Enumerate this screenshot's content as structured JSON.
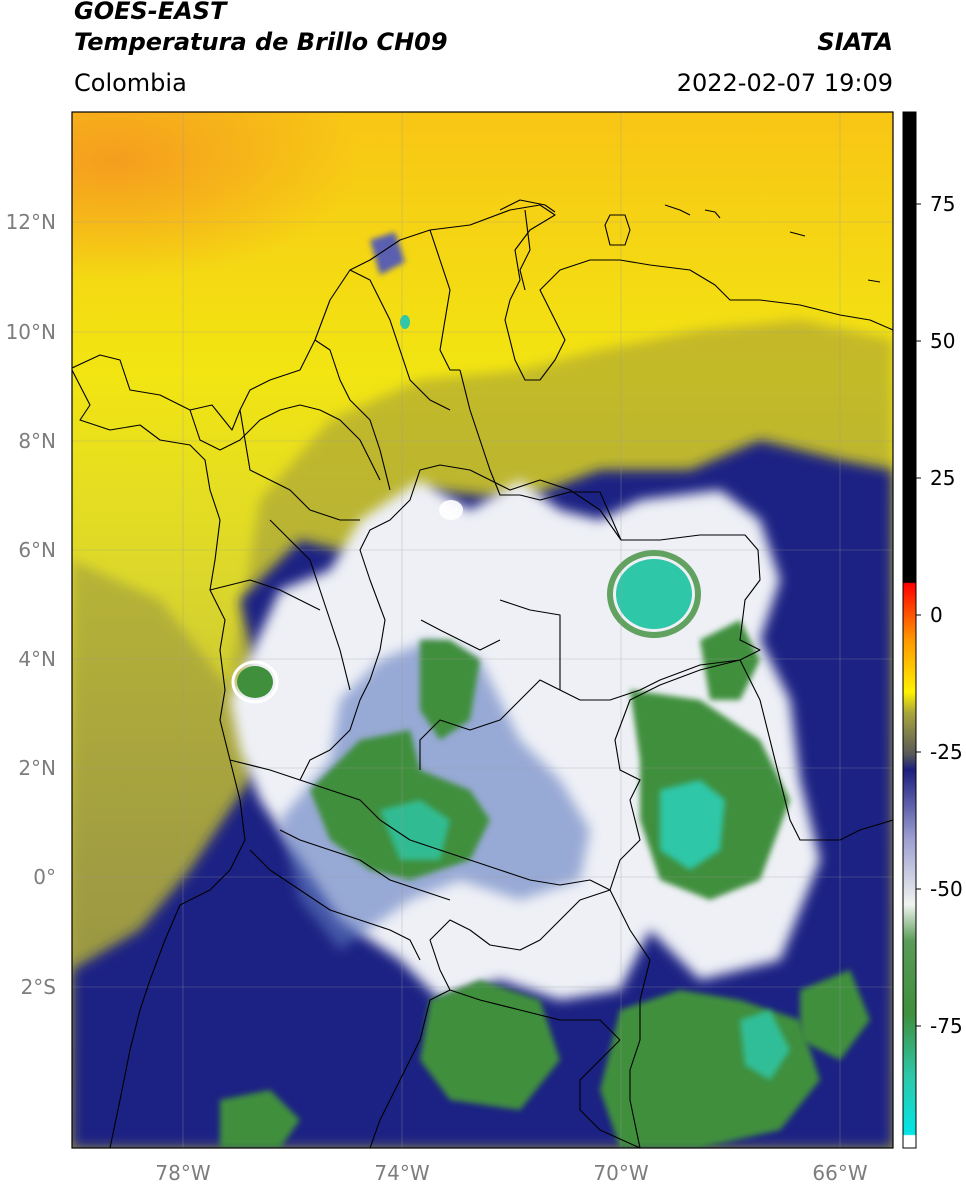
{
  "header": {
    "satellite": "GOES-EAST",
    "product": "Temperatura de Brillo CH09",
    "organization": "SIATA",
    "region": "Colombia",
    "datetime": "2022-02-07 19:09"
  },
  "map": {
    "latitude_labels": [
      "12°N",
      "10°N",
      "8°N",
      "6°N",
      "4°N",
      "2°N",
      "0°",
      "2°S"
    ],
    "longitude_labels": [
      "78°W",
      "74°W",
      "70°W",
      "66°W"
    ],
    "colors": {
      "warm_background": "#f4e01a",
      "cold_cloud_navy": "#1c1f7e",
      "very_cold_green": "#3f8f3c",
      "coldest_cyan": "#2ec7a8",
      "boundary_lines": "#000000"
    }
  },
  "colorbar": {
    "tick_labels": [
      "75",
      "50",
      "25",
      "0",
      "-25",
      "-50",
      "-75"
    ],
    "tick_values": [
      75,
      50,
      25,
      0,
      -25,
      -50,
      -75
    ],
    "colors": [
      "#ffffff",
      "#00e6e6",
      "#2ec7a8",
      "#3f8f3c",
      "#f0f4f0",
      "#1c1f7e",
      "#585858",
      "#fff200",
      "#ff9900",
      "#ff0000",
      "#000000"
    ]
  }
}
